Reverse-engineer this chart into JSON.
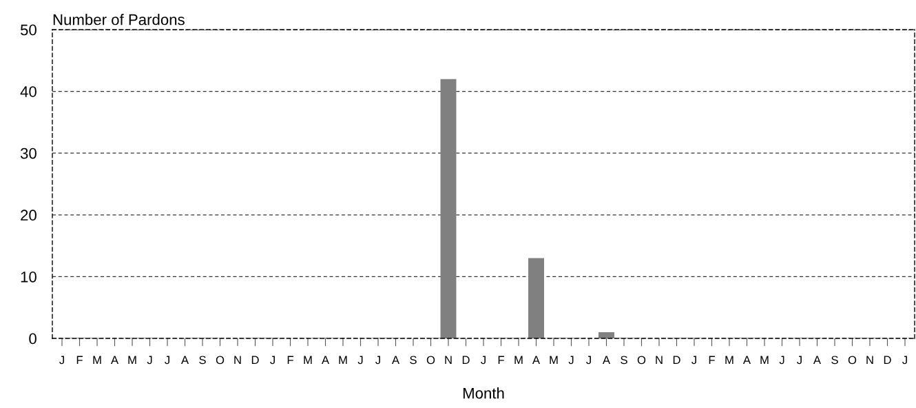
{
  "chart_data": {
    "type": "bar",
    "xlabel": "Month",
    "ylabel": "Number of Pardons",
    "categories": [
      "J",
      "F",
      "M",
      "A",
      "M",
      "J",
      "J",
      "A",
      "S",
      "O",
      "N",
      "D",
      "J",
      "F",
      "M",
      "A",
      "M",
      "J",
      "J",
      "A",
      "S",
      "O",
      "N",
      "D",
      "J",
      "F",
      "M",
      "A",
      "M",
      "J",
      "J",
      "A",
      "S",
      "O",
      "N",
      "D",
      "J",
      "F",
      "M",
      "A",
      "M",
      "J",
      "J",
      "A",
      "S",
      "O",
      "N",
      "D",
      "J"
    ],
    "values": [
      0,
      0,
      0,
      0,
      0,
      0,
      0,
      0,
      0,
      0,
      0,
      0,
      0,
      0,
      0,
      0,
      0,
      0,
      0,
      0,
      0,
      0,
      42,
      0,
      0,
      0,
      0,
      13,
      0,
      0,
      0,
      1,
      0,
      0,
      0,
      0,
      0,
      0,
      0,
      0,
      0,
      0,
      0,
      0,
      0,
      0,
      0,
      0,
      0
    ],
    "color": "#808080",
    "ylim": [
      0,
      50
    ],
    "yticks": [
      0,
      10,
      20,
      30,
      40,
      50
    ],
    "grid": "y",
    "line_style": "dashed"
  }
}
